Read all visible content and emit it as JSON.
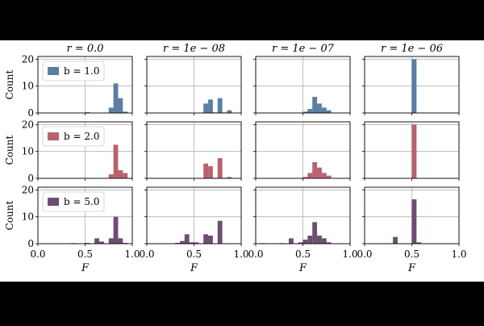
{
  "chart_data": {
    "type": "bar",
    "layout": {
      "rows": 3,
      "cols": 4
    },
    "xlim": [
      0.0,
      1.0
    ],
    "ylim": [
      0,
      21
    ],
    "x_ticks": [
      "0.0",
      "0.5",
      "1.0"
    ],
    "y_ticks": [
      "0",
      "10",
      "20"
    ],
    "xlabel": "F",
    "ylabel": "Count",
    "grid": true,
    "legend_position": "top-left",
    "bin_width": 0.05,
    "column_titles": [
      "r = 0.0",
      "r = 1e − 08",
      "r = 1e − 07",
      "r = 1e − 06"
    ],
    "rows": [
      {
        "label": "b = 1.0",
        "color": "#5a7fa3",
        "panels": [
          {
            "bins": [
              [
                0.5,
                0.3
              ],
              [
                0.75,
                2
              ],
              [
                0.8,
                11
              ],
              [
                0.85,
                5.5
              ],
              [
                0.9,
                0.5
              ]
            ]
          },
          {
            "bins": [
              [
                0.6,
                3.5
              ],
              [
                0.65,
                5
              ],
              [
                0.7,
                0.2
              ],
              [
                0.75,
                5.5
              ],
              [
                0.8,
                0.2
              ],
              [
                0.85,
                1
              ]
            ]
          },
          {
            "bins": [
              [
                0.5,
                0.5
              ],
              [
                0.55,
                1.5
              ],
              [
                0.6,
                6
              ],
              [
                0.65,
                3.5
              ],
              [
                0.7,
                2
              ],
              [
                0.75,
                1
              ]
            ]
          },
          {
            "bins": [
              [
                0.5,
                20
              ]
            ]
          }
        ]
      },
      {
        "label": "b = 2.0",
        "color": "#b8636f",
        "panels": [
          {
            "bins": [
              [
                0.75,
                1.5
              ],
              [
                0.8,
                12.5
              ],
              [
                0.85,
                3
              ],
              [
                0.9,
                2
              ]
            ]
          },
          {
            "bins": [
              [
                0.6,
                5.5
              ],
              [
                0.65,
                4.5
              ],
              [
                0.7,
                0.2
              ],
              [
                0.75,
                7.5
              ],
              [
                0.8,
                0.2
              ],
              [
                0.85,
                0.5
              ]
            ]
          },
          {
            "bins": [
              [
                0.5,
                0.5
              ],
              [
                0.55,
                2
              ],
              [
                0.6,
                6
              ],
              [
                0.65,
                4
              ],
              [
                0.7,
                2
              ],
              [
                0.75,
                1
              ]
            ]
          },
          {
            "bins": [
              [
                0.5,
                20
              ]
            ]
          }
        ]
      },
      {
        "label": "b = 5.0",
        "color": "#6e4d73",
        "panels": [
          {
            "bins": [
              [
                0.35,
                0.2
              ],
              [
                0.5,
                0.3
              ],
              [
                0.6,
                2
              ],
              [
                0.65,
                0.8
              ],
              [
                0.75,
                2
              ],
              [
                0.8,
                10
              ],
              [
                0.85,
                2
              ],
              [
                0.9,
                0.3
              ]
            ]
          },
          {
            "bins": [
              [
                0.3,
                0.3
              ],
              [
                0.35,
                1
              ],
              [
                0.4,
                3.5
              ],
              [
                0.45,
                0.5
              ],
              [
                0.5,
                0.5
              ],
              [
                0.6,
                3.5
              ],
              [
                0.65,
                3
              ],
              [
                0.75,
                8.5
              ]
            ]
          },
          {
            "bins": [
              [
                0.05,
                0.2
              ],
              [
                0.25,
                0.2
              ],
              [
                0.35,
                2
              ],
              [
                0.45,
                0.5
              ],
              [
                0.5,
                1.5
              ],
              [
                0.55,
                3
              ],
              [
                0.6,
                8
              ],
              [
                0.65,
                3
              ],
              [
                0.7,
                2
              ],
              [
                0.75,
                0.5
              ]
            ]
          },
          {
            "bins": [
              [
                0.3,
                2.5
              ],
              [
                0.5,
                16.5
              ],
              [
                0.55,
                0.5
              ]
            ]
          }
        ]
      }
    ]
  }
}
